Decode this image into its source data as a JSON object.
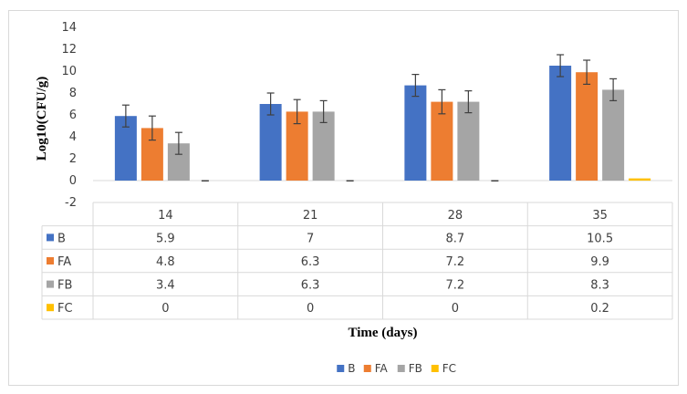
{
  "chart_data": {
    "type": "bar",
    "title": "",
    "xlabel": "Time (days)",
    "ylabel": "Log10(CFU/g)",
    "ylim": [
      -2,
      14
    ],
    "yticks": [
      -2,
      0,
      2,
      4,
      6,
      8,
      10,
      12,
      14
    ],
    "categories": [
      "14",
      "21",
      "28",
      "35"
    ],
    "series": [
      {
        "name": "B",
        "color": "#4472c4",
        "values": [
          5.9,
          7,
          8.7,
          10.5
        ],
        "labels": [
          "5.9",
          "7",
          "8.7",
          "10.5"
        ],
        "error": [
          1.0,
          1.0,
          1.0,
          1.0
        ]
      },
      {
        "name": "FA",
        "color": "#ed7d31",
        "values": [
          4.8,
          6.3,
          7.2,
          9.9
        ],
        "labels": [
          "4.8",
          "6.3",
          "7.2",
          "9.9"
        ],
        "error": [
          1.1,
          1.1,
          1.1,
          1.1
        ]
      },
      {
        "name": "FB",
        "color": "#a5a5a5",
        "values": [
          3.4,
          6.3,
          7.2,
          8.3
        ],
        "labels": [
          "3.4",
          "6.3",
          "7.2",
          "8.3"
        ],
        "error": [
          1.0,
          1.0,
          1.0,
          1.0
        ]
      },
      {
        "name": "FC",
        "color": "#ffc000",
        "values": [
          0,
          0,
          0,
          0.2
        ],
        "labels": [
          "0",
          "0",
          "0",
          "0.2"
        ],
        "error": [
          0,
          0,
          0,
          0
        ]
      }
    ],
    "grid": false,
    "data_table": true,
    "legend_position": "bottom"
  }
}
